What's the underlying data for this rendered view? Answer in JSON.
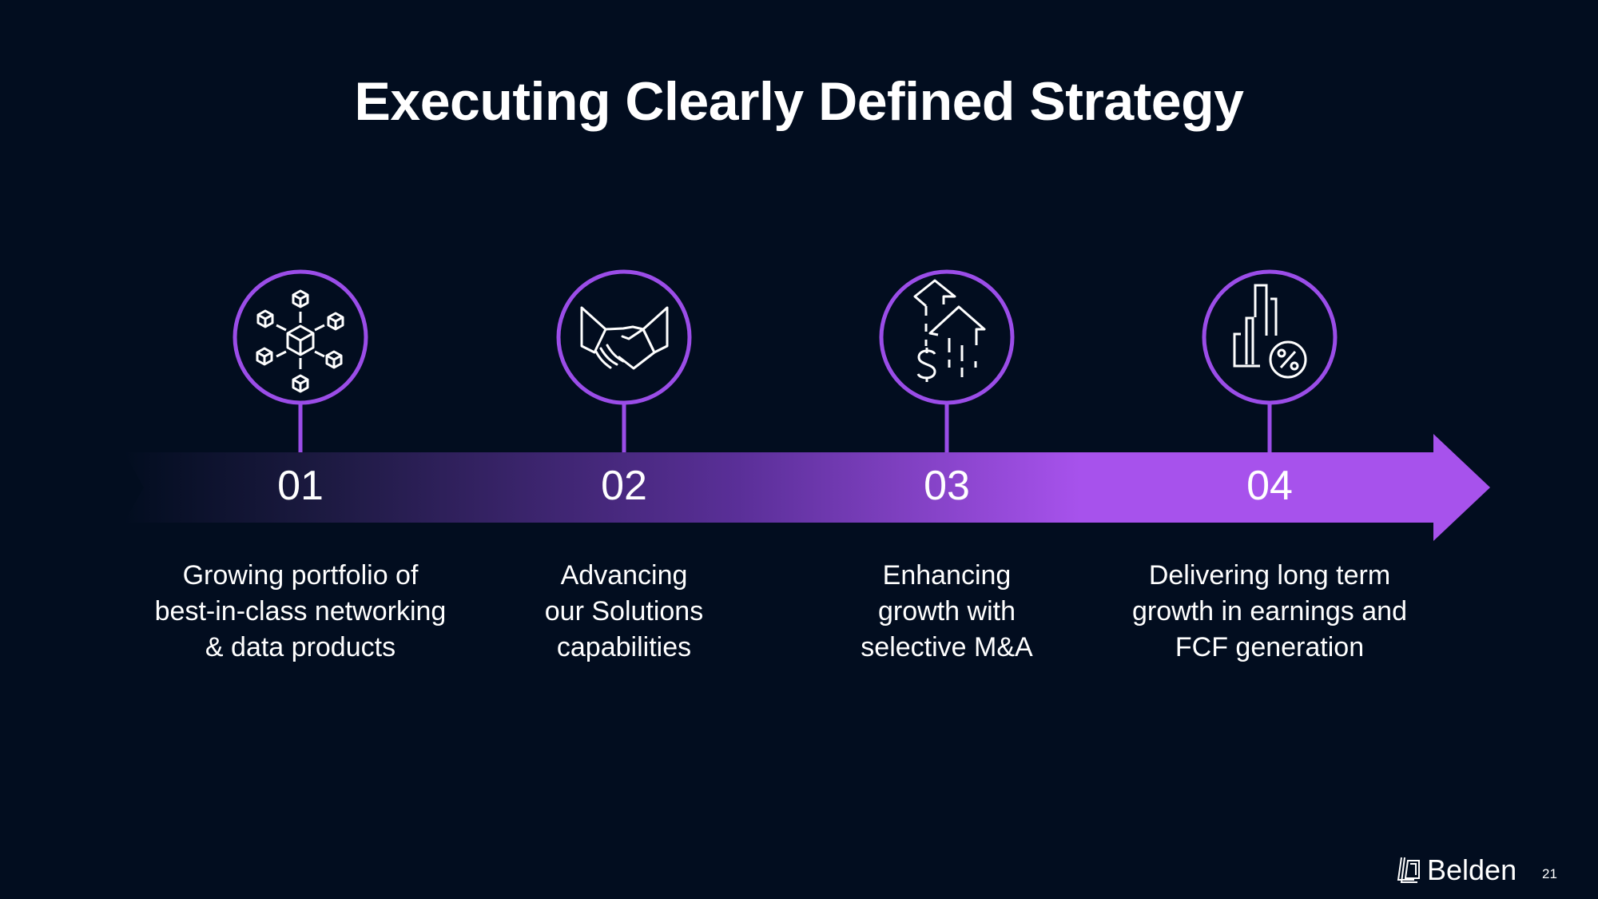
{
  "title": "Executing Clearly Defined Strategy",
  "colors": {
    "background": "#020d1f",
    "accent": "#a752ec"
  },
  "steps": [
    {
      "number": "01",
      "icon": "distribution-boxes-icon",
      "description": [
        "Growing portfolio of",
        "best-in-class networking",
        "& data products"
      ]
    },
    {
      "number": "02",
      "icon": "handshake-icon",
      "description": [
        "Advancing",
        "our Solutions",
        "capabilities"
      ]
    },
    {
      "number": "03",
      "icon": "dollar-growth-arrows-icon",
      "description": [
        "Enhancing",
        "growth with",
        "selective M&A"
      ]
    },
    {
      "number": "04",
      "icon": "bar-chart-percent-icon",
      "description": [
        "Delivering long term",
        "growth in earnings and",
        "FCF generation"
      ]
    }
  ],
  "footer": {
    "brand": "Belden",
    "page_number": "21"
  }
}
